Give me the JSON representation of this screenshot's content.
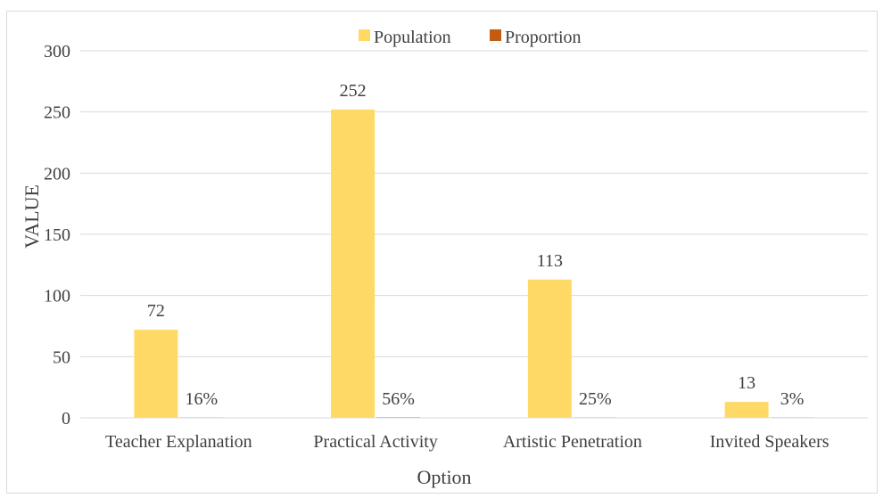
{
  "chart_data": {
    "type": "bar",
    "categories": [
      "Teacher Explanation",
      "Practical Activity",
      "Artistic Penetration",
      "Invited Speakers"
    ],
    "series": [
      {
        "name": "Population",
        "values": [
          72,
          252,
          113,
          13
        ],
        "labels": [
          "72",
          "252",
          "113",
          "13"
        ],
        "color": "#ffd966"
      },
      {
        "name": "Proportion",
        "values": [
          0.16,
          0.56,
          0.25,
          0.03
        ],
        "labels": [
          "16%",
          "56%",
          "25%",
          "3%"
        ],
        "color": "#c55a11"
      }
    ],
    "title": "",
    "xlabel": "Option",
    "ylabel": "VALUE",
    "ylim": [
      0,
      300
    ],
    "yticks": [
      0,
      50,
      100,
      150,
      200,
      250,
      300
    ],
    "grid": true,
    "legend_position": "top-center"
  }
}
